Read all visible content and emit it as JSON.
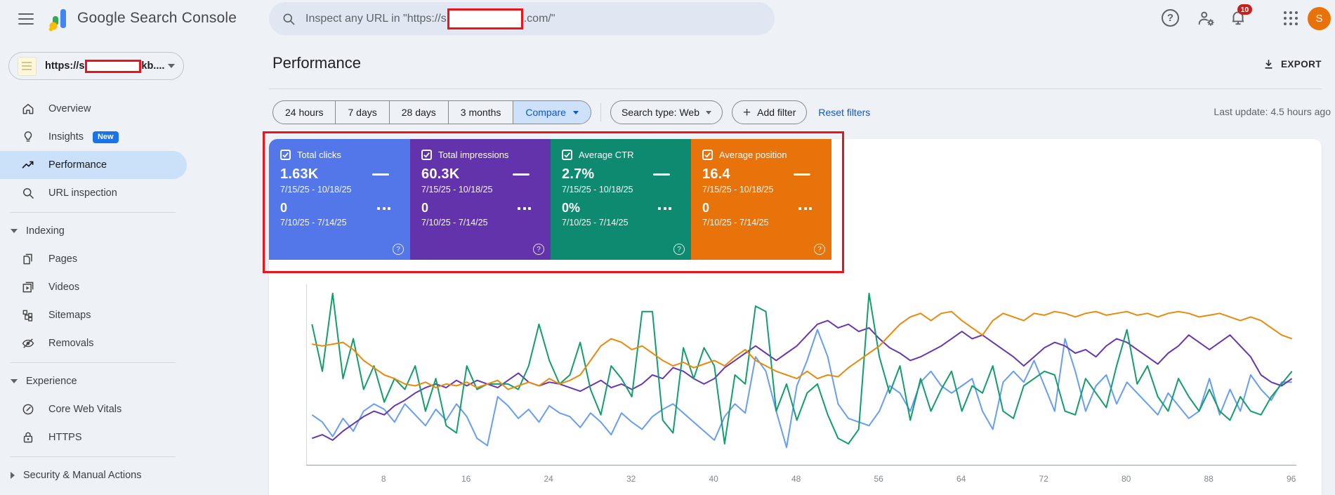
{
  "topbar": {
    "app_title": "Google Search Console",
    "search_placeholder_prefix": "Inspect any URL in \"https://s",
    "search_placeholder_suffix": ".com/\"",
    "notification_count": "10",
    "avatar_initial": "S"
  },
  "property_selector": {
    "url_prefix": "https://s",
    "url_suffix": "kb...."
  },
  "sidebar": {
    "items": [
      {
        "label": "Overview"
      },
      {
        "label": "Insights",
        "badge": "New"
      },
      {
        "label": "Performance"
      },
      {
        "label": "URL inspection"
      }
    ],
    "groups": [
      {
        "title": "Indexing",
        "items": [
          "Pages",
          "Videos",
          "Sitemaps",
          "Removals"
        ]
      },
      {
        "title": "Experience",
        "items": [
          "Core Web Vitals",
          "HTTPS"
        ]
      }
    ],
    "collapsed_section": "Security & Manual Actions"
  },
  "header": {
    "title": "Performance",
    "export_label": "EXPORT",
    "last_update": "Last update: 4.5 hours ago"
  },
  "filters": {
    "date_ranges": [
      "24 hours",
      "7 days",
      "28 days",
      "3 months"
    ],
    "compare_label": "Compare",
    "search_type": "Search type: Web",
    "add_filter": "Add filter",
    "reset": "Reset filters"
  },
  "metric_cards": [
    {
      "label": "Total clicks",
      "value": "1.63K",
      "period": "7/15/25 - 10/18/25",
      "compare_value": "0",
      "compare_period": "7/10/25 - 7/14/25",
      "color": "#5377e8"
    },
    {
      "label": "Total impressions",
      "value": "60.3K",
      "period": "7/15/25 - 10/18/25",
      "compare_value": "0",
      "compare_period": "7/10/25 - 7/14/25",
      "color": "#6333ab"
    },
    {
      "label": "Average CTR",
      "value": "2.7%",
      "period": "7/15/25 - 10/18/25",
      "compare_value": "0%",
      "compare_period": "7/10/25 - 7/14/25",
      "color": "#0d8a6f"
    },
    {
      "label": "Average position",
      "value": "16.4",
      "period": "7/15/25 - 10/18/25",
      "compare_value": "0",
      "compare_period": "7/10/25 - 7/14/25",
      "color": "#e8730a"
    }
  ],
  "chart_data": {
    "type": "line",
    "x_range": [
      1,
      96
    ],
    "x_ticks": [
      8,
      16,
      24,
      32,
      40,
      48,
      56,
      64,
      72,
      80,
      88,
      96
    ],
    "grid": false,
    "y_unit": "percent-of-plot-height (estimated from pixels)",
    "series": [
      {
        "name": "Total clicks",
        "color": "#669df6",
        "values": [
          28,
          24,
          16,
          26,
          19,
          30,
          34,
          31,
          24,
          34,
          28,
          22,
          31,
          25,
          34,
          27,
          15,
          11,
          38,
          33,
          26,
          31,
          24,
          33,
          29,
          27,
          21,
          29,
          24,
          17,
          29,
          24,
          20,
          27,
          31,
          34,
          29,
          24,
          19,
          14,
          27,
          34,
          29,
          60,
          52,
          30,
          10,
          44,
          58,
          75,
          60,
          34,
          26,
          24,
          22,
          30,
          44,
          40,
          30,
          46,
          52,
          44,
          40,
          44,
          48,
          30,
          20,
          46,
          52,
          46,
          58,
          44,
          30,
          70,
          52,
          30,
          44,
          50,
          34,
          46,
          40,
          34,
          28,
          40,
          33,
          26,
          30,
          48,
          28,
          42,
          30,
          50,
          42,
          36,
          46,
          46
        ]
      },
      {
        "name": "Total impressions",
        "color": "#6637b0",
        "values": [
          15,
          17,
          14,
          19,
          23,
          27,
          30,
          28,
          33,
          36,
          40,
          43,
          45,
          43,
          47,
          44,
          47,
          45,
          43,
          47,
          51,
          46,
          44,
          46,
          45,
          43,
          41,
          44,
          47,
          43,
          45,
          42,
          45,
          50,
          48,
          54,
          52,
          48,
          45,
          48,
          54,
          58,
          62,
          66,
          62,
          58,
          62,
          66,
          72,
          78,
          80,
          76,
          78,
          74,
          76,
          70,
          65,
          62,
          58,
          60,
          63,
          66,
          70,
          74,
          70,
          72,
          68,
          64,
          60,
          55,
          60,
          65,
          68,
          66,
          62,
          64,
          60,
          66,
          70,
          68,
          64,
          60,
          56,
          62,
          66,
          72,
          68,
          64,
          68,
          72,
          66,
          60,
          50,
          46,
          44,
          48
        ]
      },
      {
        "name": "Average CTR",
        "color": "#129d6a",
        "values": [
          78,
          52,
          95,
          48,
          70,
          42,
          55,
          35,
          48,
          42,
          55,
          30,
          48,
          22,
          18,
          55,
          42,
          45,
          45,
          45,
          42,
          55,
          78,
          58,
          45,
          50,
          68,
          42,
          28,
          55,
          48,
          38,
          85,
          85,
          25,
          18,
          65,
          48,
          65,
          55,
          12,
          50,
          45,
          88,
          85,
          30,
          45,
          25,
          40,
          45,
          28,
          15,
          12,
          20,
          95,
          60,
          40,
          55,
          25,
          48,
          30,
          42,
          52,
          30,
          44,
          40,
          55,
          30,
          26,
          44,
          48,
          52,
          50,
          30,
          28,
          48,
          40,
          32,
          55,
          75,
          45,
          55,
          38,
          30,
          48,
          38,
          30,
          42,
          30,
          25,
          38,
          30,
          28,
          38,
          45,
          52
        ]
      },
      {
        "name": "Average position",
        "color": "#e9890d",
        "values": [
          67,
          66,
          67,
          68,
          64,
          58,
          54,
          50,
          48,
          45,
          44,
          46,
          43,
          45,
          44,
          46,
          43,
          45,
          47,
          42,
          44,
          46,
          44,
          48,
          45,
          47,
          50,
          58,
          66,
          70,
          68,
          64,
          66,
          62,
          58,
          55,
          57,
          54,
          56,
          58,
          55,
          60,
          64,
          58,
          55,
          52,
          50,
          48,
          52,
          48,
          50,
          49,
          54,
          58,
          62,
          66,
          72,
          78,
          82,
          84,
          80,
          84,
          85,
          80,
          76,
          72,
          80,
          84,
          82,
          80,
          84,
          83,
          85,
          84,
          82,
          84,
          85,
          83,
          84,
          85,
          83,
          84,
          82,
          84,
          85,
          84,
          82,
          83,
          84,
          82,
          80,
          82,
          80,
          76,
          72,
          70
        ]
      }
    ]
  },
  "annotations": {
    "highlight_color": "#e8151c",
    "accent_blue": "#1a73e8",
    "badge_red": "#c5221f"
  }
}
